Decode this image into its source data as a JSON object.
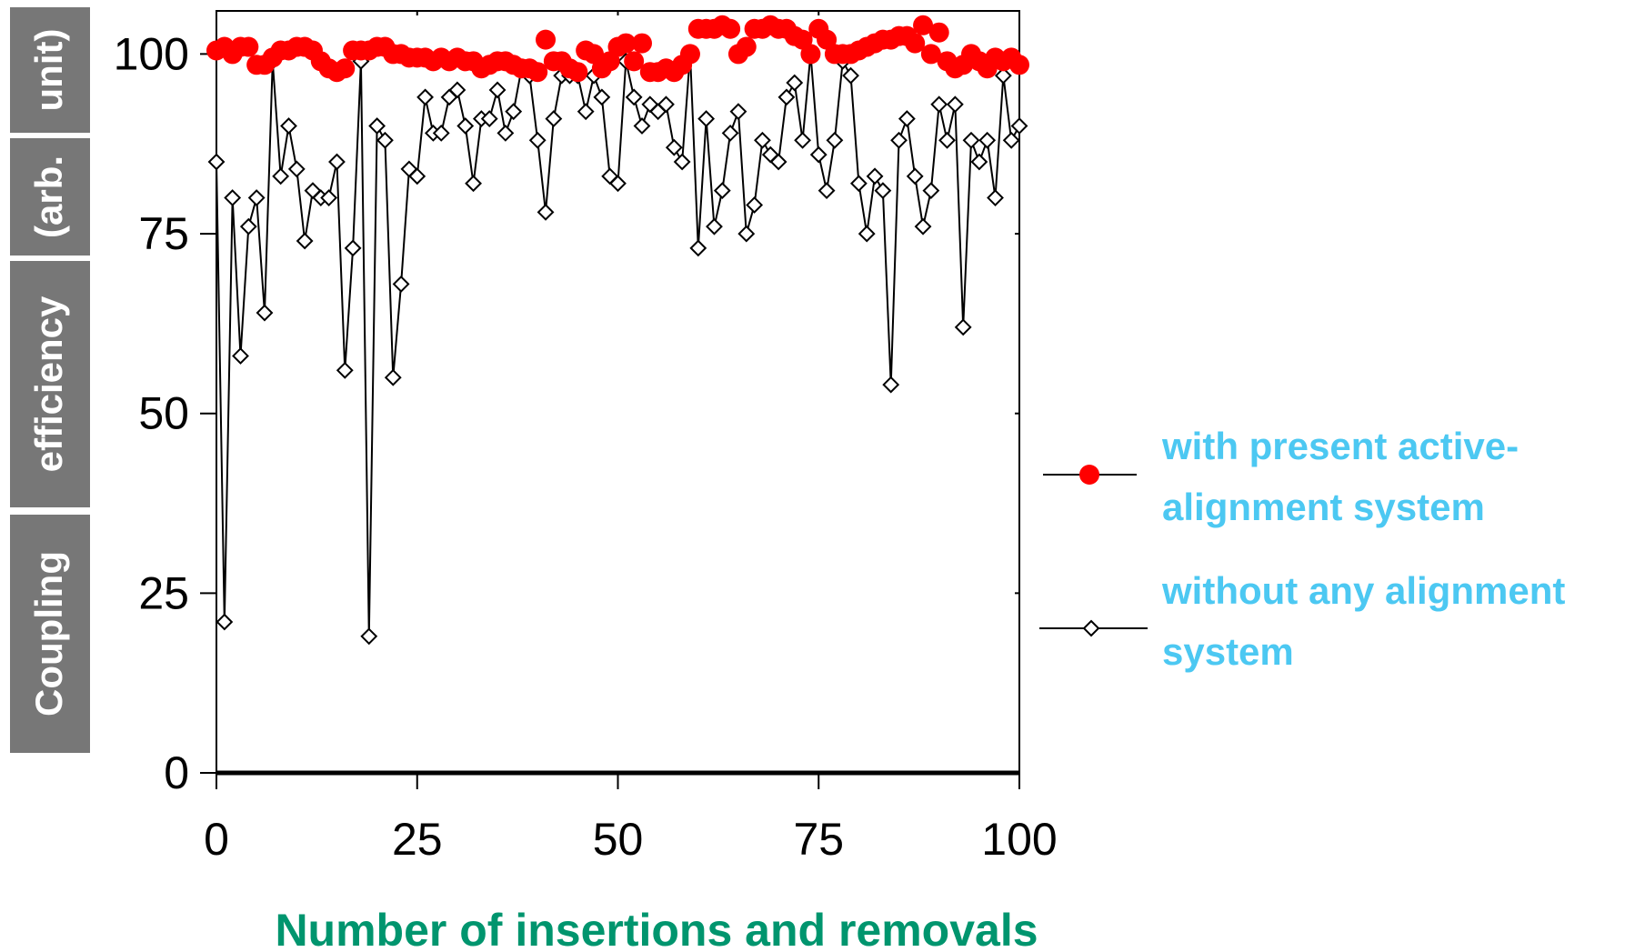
{
  "chart_data": {
    "type": "scatter",
    "xlabel": "Number of insertions and removals",
    "ylabel_words": [
      "Coupling",
      "efficiency",
      "(arb.",
      "unit)"
    ],
    "xlim": [
      0,
      100
    ],
    "ylim": [
      0,
      106
    ],
    "x_ticks": [
      0,
      25,
      50,
      75,
      100
    ],
    "y_ticks": [
      0,
      25,
      50,
      75,
      100
    ],
    "grid": false,
    "legend_placement": "right",
    "colors": {
      "with_series": "#ff0000",
      "without_series": "#000000",
      "legend_text": "#4cc8f2",
      "xlabel": "#00956e",
      "ylabel_box": "#777777"
    },
    "series": [
      {
        "name": "with present active-alignment system",
        "legend_lines": [
          "with present active-",
          "alignment system"
        ],
        "marker": "filled-circle",
        "line": false,
        "x": [
          0,
          1,
          2,
          3,
          4,
          5,
          6,
          7,
          8,
          9,
          10,
          11,
          12,
          13,
          14,
          15,
          16,
          17,
          18,
          19,
          20,
          21,
          22,
          23,
          24,
          25,
          26,
          27,
          28,
          29,
          30,
          31,
          32,
          33,
          34,
          35,
          36,
          37,
          38,
          39,
          40,
          41,
          42,
          43,
          44,
          45,
          46,
          47,
          48,
          49,
          50,
          51,
          52,
          53,
          54,
          55,
          56,
          57,
          58,
          59,
          60,
          61,
          62,
          63,
          64,
          65,
          66,
          67,
          68,
          69,
          70,
          71,
          72,
          73,
          74,
          75,
          76,
          77,
          78,
          79,
          80,
          81,
          82,
          83,
          84,
          85,
          86,
          87,
          88,
          89,
          90,
          91,
          92,
          93,
          94,
          95,
          96,
          97,
          98,
          99,
          100
        ],
        "y": [
          100.5,
          101,
          100,
          101,
          101,
          98.5,
          98.5,
          99.5,
          100.5,
          100.5,
          101,
          101,
          100.5,
          99,
          98,
          97.5,
          98,
          100.5,
          100.5,
          100.5,
          101,
          101,
          100,
          100,
          99.5,
          99.5,
          99.5,
          99,
          99.5,
          99,
          99.5,
          99,
          99,
          98,
          98.5,
          99,
          99,
          98.5,
          98,
          98,
          97.5,
          102,
          99,
          99,
          98,
          97.5,
          100.5,
          100,
          98,
          99,
          101,
          101.5,
          99,
          101.5,
          97.5,
          97.5,
          98,
          97.5,
          98.5,
          100,
          103.5,
          103.5,
          103.5,
          104,
          103.5,
          100,
          101,
          103.5,
          103.5,
          104,
          103.5,
          103.5,
          102.5,
          102,
          100,
          103.5,
          102,
          100,
          100,
          100,
          100.5,
          101,
          101.5,
          102,
          102,
          102.5,
          102.5,
          101.5,
          104,
          100,
          103,
          99,
          98,
          98.5,
          100,
          99,
          98,
          99.5,
          99,
          99.5,
          98.5
        ]
      },
      {
        "name": "without any alignment system",
        "legend_lines": [
          "without any alignment",
          "system"
        ],
        "marker": "open-diamond",
        "line": true,
        "x": [
          0,
          1,
          2,
          3,
          4,
          5,
          6,
          7,
          8,
          9,
          10,
          11,
          12,
          13,
          14,
          15,
          16,
          17,
          18,
          19,
          20,
          21,
          22,
          23,
          24,
          25,
          26,
          27,
          28,
          29,
          30,
          31,
          32,
          33,
          34,
          35,
          36,
          37,
          38,
          39,
          40,
          41,
          42,
          43,
          44,
          45,
          46,
          47,
          48,
          49,
          50,
          51,
          52,
          53,
          54,
          55,
          56,
          57,
          58,
          59,
          60,
          61,
          62,
          63,
          64,
          65,
          66,
          67,
          68,
          69,
          70,
          71,
          72,
          73,
          74,
          75,
          76,
          77,
          78,
          79,
          80,
          81,
          82,
          83,
          84,
          85,
          86,
          87,
          88,
          89,
          90,
          91,
          92,
          93,
          94,
          95,
          96,
          97,
          98,
          99,
          100
        ],
        "y": [
          85,
          21,
          80,
          58,
          76,
          80,
          64,
          99,
          83,
          90,
          84,
          74,
          81,
          80,
          80,
          85,
          56,
          73,
          99,
          19,
          90,
          88,
          55,
          68,
          84,
          83,
          94,
          89,
          89,
          94,
          95,
          90,
          82,
          91,
          91,
          95,
          89,
          92,
          98,
          97,
          88,
          78,
          91,
          97,
          97,
          97,
          92,
          97,
          94,
          83,
          82,
          99,
          94,
          90,
          93,
          92,
          93,
          87,
          85,
          100,
          73,
          91,
          76,
          81,
          89,
          92,
          75,
          79,
          88,
          86,
          85,
          94,
          96,
          88,
          100,
          86,
          81,
          88,
          99,
          97,
          82,
          75,
          83,
          81,
          54,
          88,
          91,
          83,
          76,
          81,
          93,
          88,
          93,
          62,
          88,
          85,
          88,
          80,
          97,
          88,
          90
        ]
      }
    ]
  }
}
